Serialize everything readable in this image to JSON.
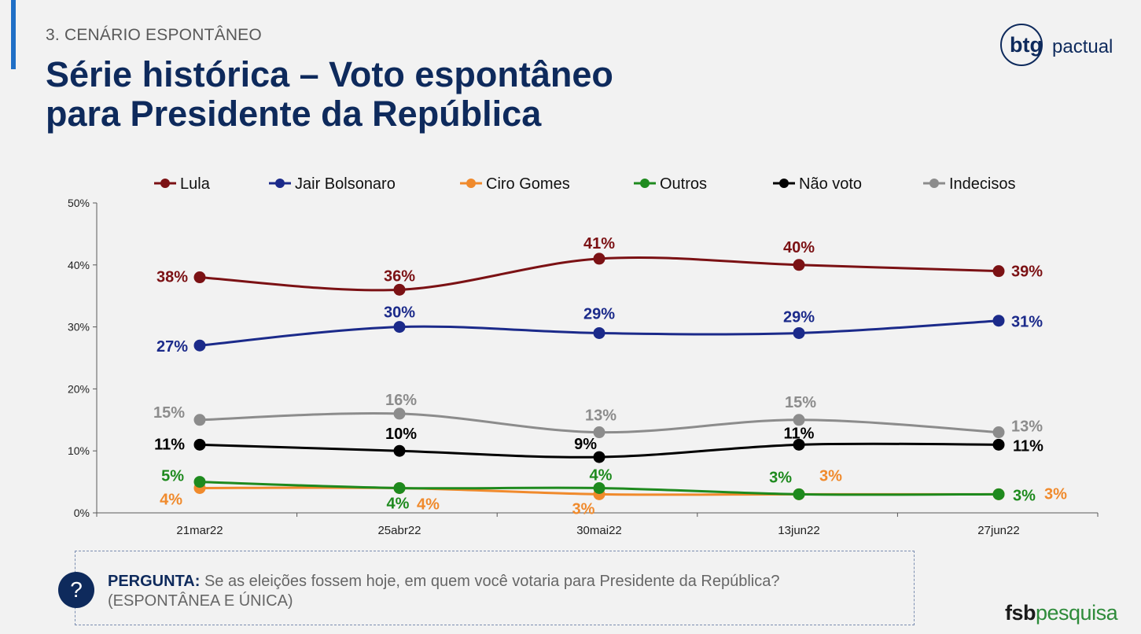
{
  "header": {
    "section": "3. CENÁRIO ESPONTÂNEO",
    "title_line1": "Série histórica – Voto espontâneo",
    "title_line2": "para Presidente da República"
  },
  "logos": {
    "btg_bold": "btg",
    "btg_light": "pactual",
    "fsb_bold": "fsb",
    "fsb_green": "pesquisa"
  },
  "question": {
    "icon": "?",
    "label": "PERGUNTA:",
    "text": "Se as eleições fossem hoje, em quem você votaria para Presidente da República?",
    "note": "(ESPONTÂNEA E ÚNICA)"
  },
  "chart_data": {
    "type": "line",
    "categories": [
      "21mar22",
      "25abr22",
      "30mai22",
      "13jun22",
      "27jun22"
    ],
    "ylim": [
      0,
      50
    ],
    "yticks": [
      "0%",
      "10%",
      "20%",
      "30%",
      "40%",
      "50%"
    ],
    "legend_position": "top",
    "grid": false,
    "series": [
      {
        "name": "Lula",
        "color": "#7b1114",
        "values": [
          38,
          36,
          41,
          40,
          39
        ],
        "labels": [
          "38%",
          "36%",
          "41%",
          "40%",
          "39%"
        ]
      },
      {
        "name": "Jair Bolsonaro",
        "color": "#1b2a8a",
        "values": [
          27,
          30,
          29,
          29,
          31
        ],
        "labels": [
          "27%",
          "30%",
          "29%",
          "29%",
          "31%"
        ]
      },
      {
        "name": "Ciro Gomes",
        "color": "#f08a2c",
        "values": [
          4,
          4,
          3,
          3,
          3
        ],
        "labels": [
          "4%",
          "4%",
          "3%",
          "3%",
          "3%"
        ]
      },
      {
        "name": "Outros",
        "color": "#1e8a1e",
        "values": [
          5,
          4,
          4,
          3,
          3
        ],
        "labels": [
          "5%",
          "4%",
          "4%",
          "3%",
          "3%"
        ]
      },
      {
        "name": "Não voto",
        "color": "#000000",
        "values": [
          11,
          10,
          9,
          11,
          11
        ],
        "labels": [
          "11%",
          "10%",
          "9%",
          "11%",
          "11%"
        ]
      },
      {
        "name": "Indecisos",
        "color": "#8c8c8c",
        "values": [
          15,
          16,
          13,
          15,
          13
        ],
        "labels": [
          "15%",
          "16%",
          "13%",
          "15%",
          "13%"
        ]
      }
    ]
  }
}
